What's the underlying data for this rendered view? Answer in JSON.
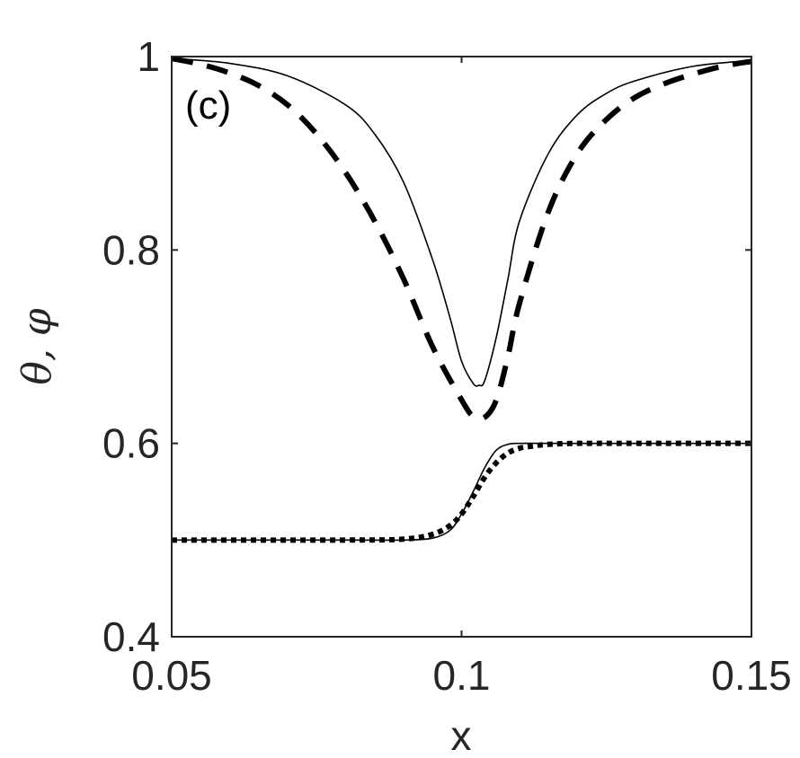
{
  "chart_data": {
    "type": "line",
    "panel_label": "(c)",
    "xlabel": "x",
    "ylabel": "θ, φ",
    "xlim": [
      0.05,
      0.15
    ],
    "ylim": [
      0.4,
      1.0
    ],
    "xticks": [
      0.05,
      0.1,
      0.15
    ],
    "xtick_labels": [
      "0.05",
      "0.1",
      "0.15"
    ],
    "yticks": [
      0.4,
      0.6,
      0.8,
      1.0
    ],
    "ytick_labels": [
      "0.4",
      "0.6",
      "0.8",
      "1"
    ],
    "grid": false,
    "legend": "none",
    "series": [
      {
        "style": "solid-thin",
        "x": [
          0.05,
          0.06,
          0.07,
          0.08,
          0.085,
          0.09,
          0.095,
          0.098,
          0.1,
          0.102,
          0.103,
          0.104,
          0.106,
          0.108,
          0.11,
          0.115,
          0.12,
          0.125,
          0.13,
          0.14,
          0.15
        ],
        "y": [
          0.998,
          0.993,
          0.98,
          0.95,
          0.92,
          0.87,
          0.79,
          0.73,
          0.685,
          0.662,
          0.66,
          0.665,
          0.71,
          0.77,
          0.83,
          0.9,
          0.94,
          0.962,
          0.975,
          0.99,
          0.996
        ]
      },
      {
        "style": "dashed-thick",
        "x": [
          0.05,
          0.055,
          0.06,
          0.065,
          0.07,
          0.075,
          0.08,
          0.085,
          0.09,
          0.095,
          0.1,
          0.102,
          0.104,
          0.106,
          0.108,
          0.11,
          0.115,
          0.12,
          0.125,
          0.13,
          0.135,
          0.14,
          0.145,
          0.15
        ],
        "y": [
          0.998,
          0.992,
          0.983,
          0.97,
          0.95,
          0.92,
          0.88,
          0.83,
          0.77,
          0.7,
          0.645,
          0.628,
          0.627,
          0.645,
          0.69,
          0.745,
          0.84,
          0.9,
          0.935,
          0.958,
          0.972,
          0.982,
          0.99,
          0.995
        ]
      },
      {
        "style": "solid-thin",
        "x": [
          0.05,
          0.08,
          0.09,
          0.095,
          0.098,
          0.1,
          0.102,
          0.104,
          0.106,
          0.108,
          0.11,
          0.115,
          0.12,
          0.15
        ],
        "y": [
          0.5,
          0.5,
          0.5,
          0.502,
          0.51,
          0.527,
          0.55,
          0.575,
          0.593,
          0.599,
          0.6,
          0.6,
          0.6,
          0.6
        ]
      },
      {
        "style": "dotted-thick",
        "x": [
          0.05,
          0.08,
          0.09,
          0.095,
          0.098,
          0.1,
          0.102,
          0.104,
          0.106,
          0.108,
          0.11,
          0.112,
          0.115,
          0.12,
          0.13,
          0.15
        ],
        "y": [
          0.5,
          0.5,
          0.501,
          0.506,
          0.515,
          0.527,
          0.545,
          0.565,
          0.58,
          0.59,
          0.595,
          0.597,
          0.599,
          0.6,
          0.6,
          0.6
        ]
      }
    ]
  }
}
